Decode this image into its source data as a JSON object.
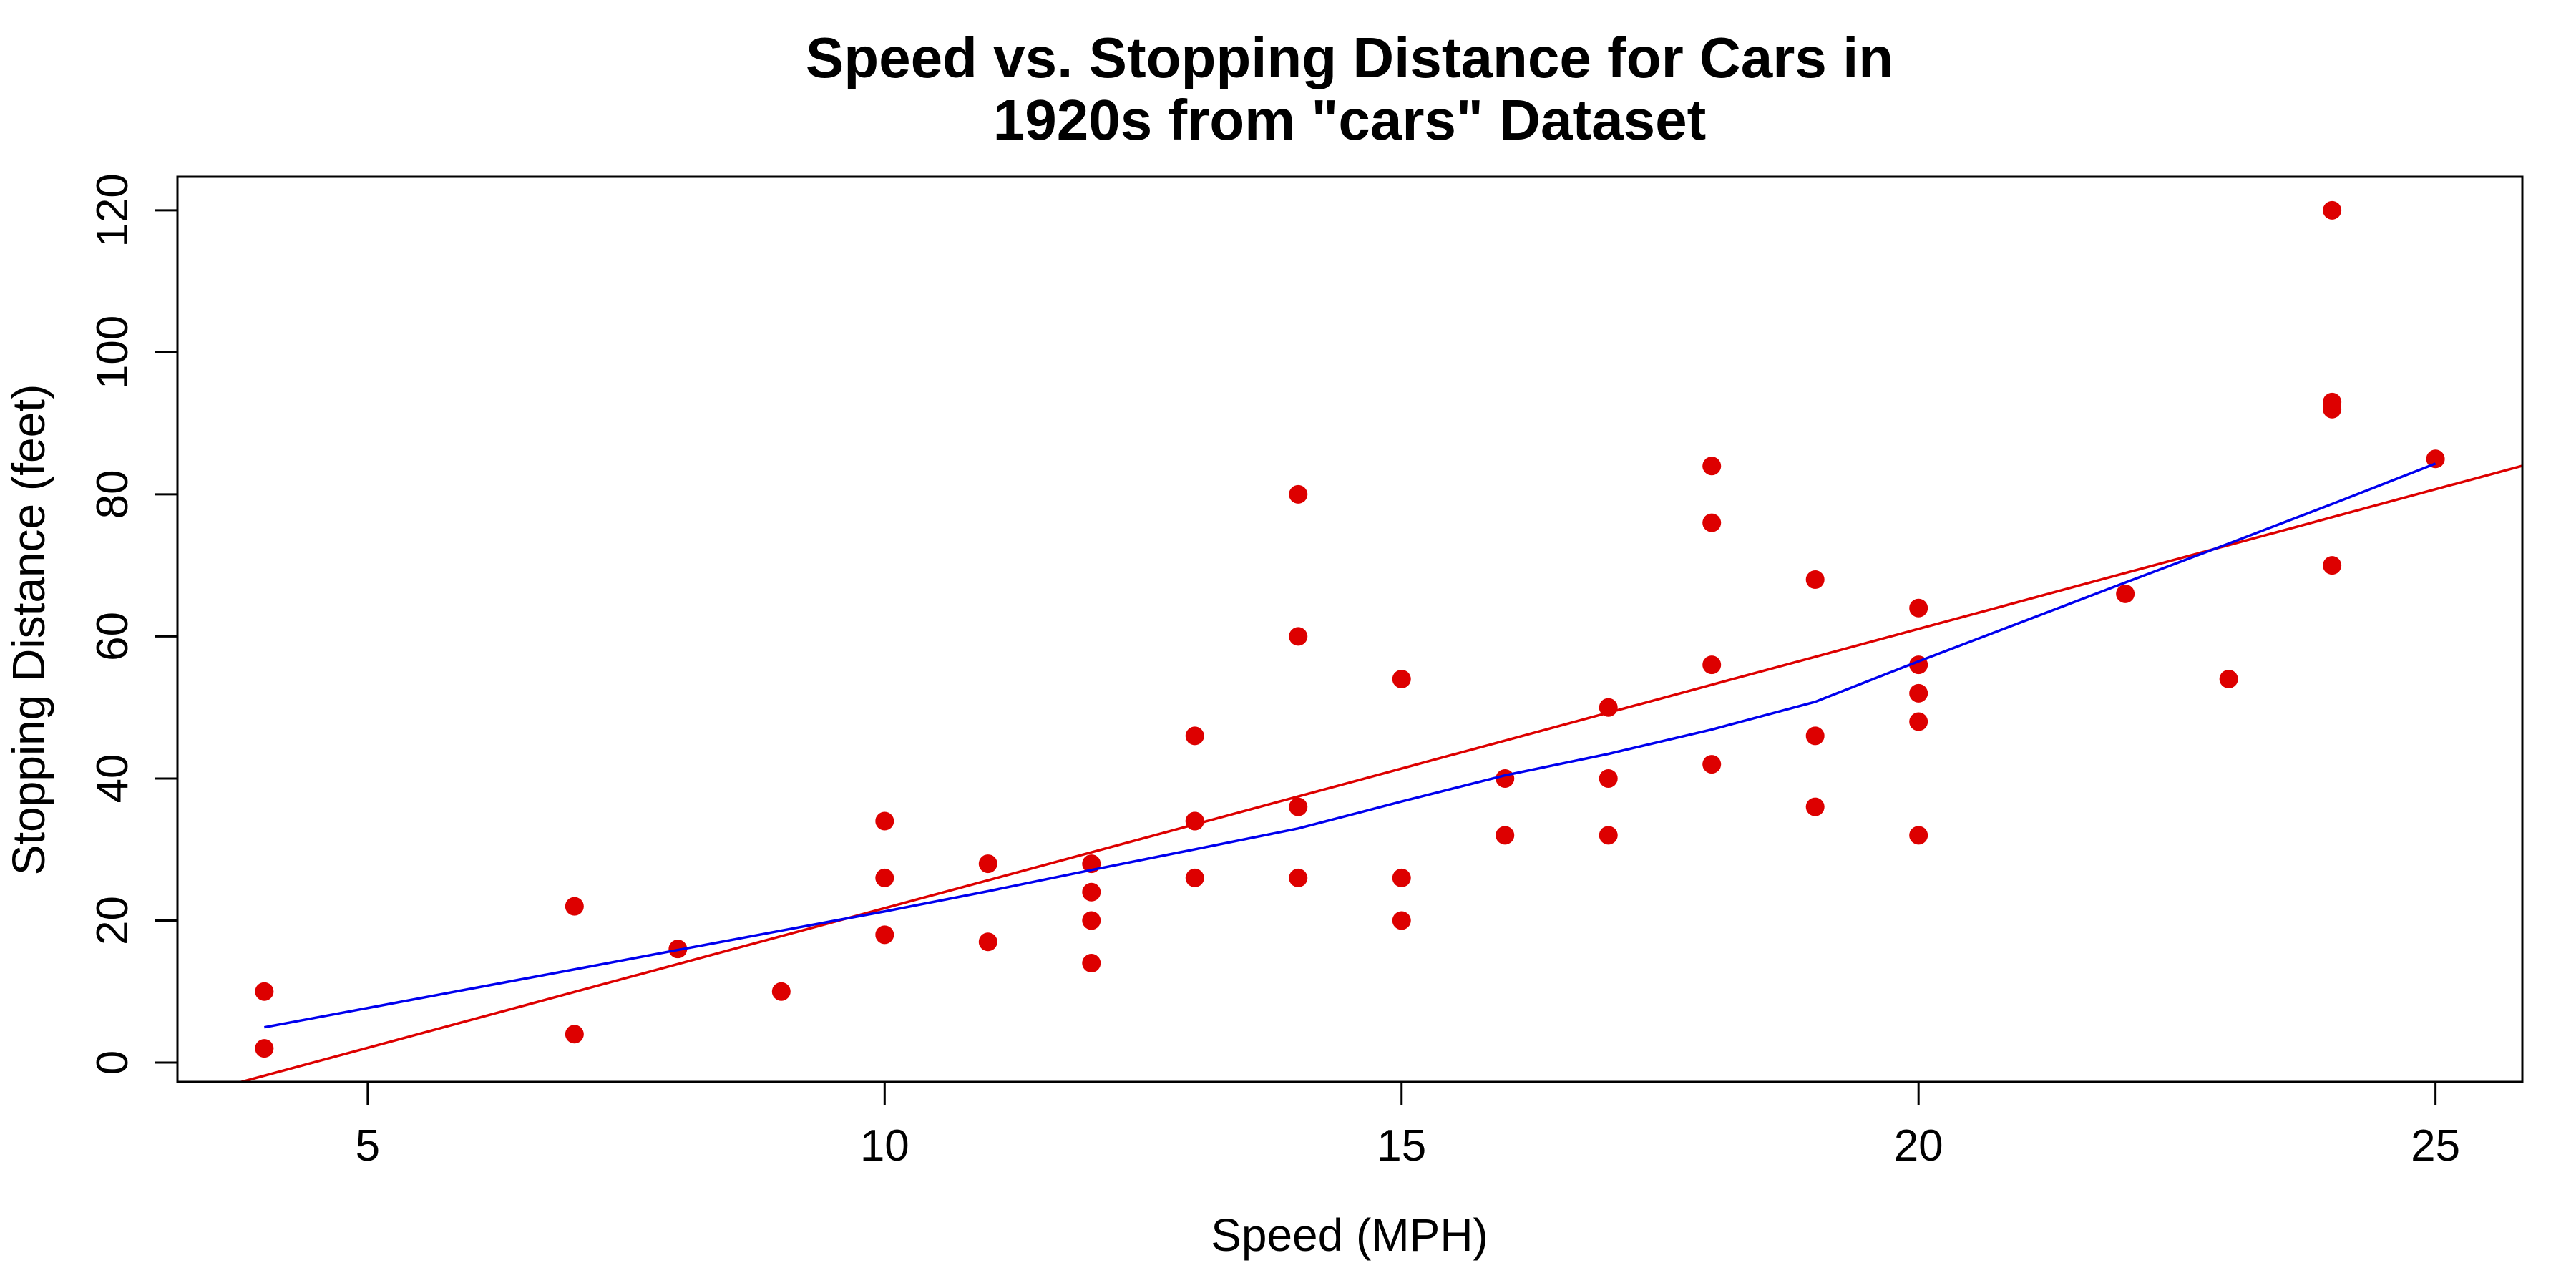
{
  "chart_data": {
    "type": "scatter",
    "title_lines": [
      "Speed vs. Stopping Distance for Cars in",
      "1920s from \"cars\" Dataset"
    ],
    "xlabel": "Speed (MPH)",
    "ylabel": "Stopping Distance (feet)",
    "xlim": [
      3.16,
      25.84
    ],
    "ylim": [
      -2.72,
      124.72
    ],
    "xticks": [
      5,
      10,
      15,
      20,
      25
    ],
    "yticks": [
      0,
      20,
      40,
      60,
      80,
      100,
      120
    ],
    "grid": false,
    "legend": "none",
    "points": {
      "color": "#dd0000",
      "x": [
        4,
        4,
        7,
        7,
        8,
        9,
        10,
        10,
        10,
        11,
        11,
        12,
        12,
        12,
        12,
        13,
        13,
        13,
        13,
        14,
        14,
        14,
        14,
        15,
        15,
        15,
        16,
        16,
        17,
        17,
        17,
        18,
        18,
        18,
        18,
        19,
        19,
        19,
        20,
        20,
        20,
        20,
        20,
        22,
        23,
        24,
        24,
        24,
        24,
        25
      ],
      "y": [
        2,
        10,
        4,
        22,
        16,
        10,
        18,
        26,
        34,
        17,
        28,
        14,
        20,
        24,
        28,
        26,
        34,
        34,
        46,
        26,
        36,
        60,
        80,
        20,
        26,
        54,
        32,
        40,
        32,
        40,
        50,
        42,
        56,
        76,
        84,
        36,
        46,
        68,
        32,
        48,
        52,
        56,
        64,
        66,
        54,
        70,
        92,
        93,
        120,
        85
      ]
    },
    "regression_line": {
      "color": "#dd0000",
      "intercept": -17.579,
      "slope": 3.932
    },
    "smooth_line": {
      "color": "#0000ee",
      "x": [
        4,
        7,
        8,
        9,
        10,
        11,
        12,
        13,
        14,
        15,
        16,
        17,
        18,
        19,
        20,
        22,
        23,
        24,
        25
      ],
      "y": [
        4.97,
        13.12,
        15.86,
        18.58,
        21.28,
        24.13,
        27.12,
        30.03,
        32.96,
        36.76,
        40.44,
        43.46,
        46.89,
        50.79,
        56.49,
        67.59,
        73.08,
        78.64,
        84.33
      ]
    }
  }
}
